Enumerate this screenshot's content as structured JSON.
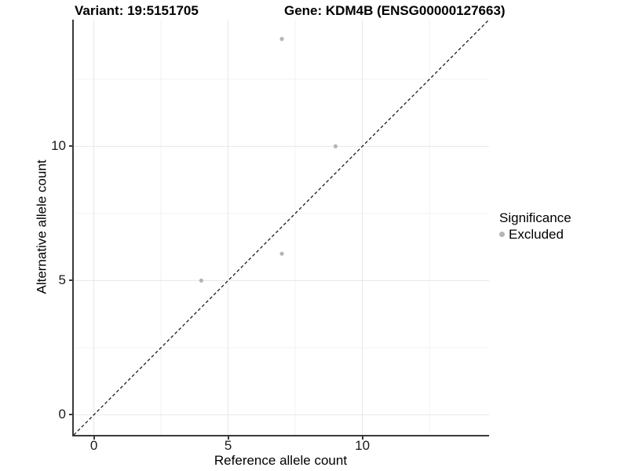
{
  "header": {
    "variant_title": "Variant: 19:5151705",
    "gene_title": "Gene: KDM4B (ENSG00000127663)"
  },
  "chart_data": {
    "type": "scatter",
    "title": "Variant: 19:5151705   Gene: KDM4B (ENSG00000127663)",
    "xlabel": "Reference allele count",
    "ylabel": "Alternative allele count",
    "xlim": [
      -0.75,
      14.72
    ],
    "ylim": [
      -0.75,
      14.72
    ],
    "x_ticks": [
      0,
      5,
      10
    ],
    "y_ticks": [
      0,
      5,
      10
    ],
    "x_minor_ticks": [
      2.5,
      7.5,
      12.5
    ],
    "y_minor_ticks": [
      2.5,
      7.5,
      12.5
    ],
    "grid": "major and minor gridlines on white background",
    "reference_line": "identity line y = x, black dashed",
    "series": [
      {
        "name": "Excluded",
        "points": [
          [
            7,
            14
          ],
          [
            9,
            10
          ],
          [
            7,
            6
          ],
          [
            4,
            5
          ]
        ]
      }
    ],
    "legend": {
      "title": "Significance",
      "position": "right",
      "items": [
        {
          "label": "Excluded"
        }
      ]
    }
  },
  "colors": {
    "point": "#b5b5b5",
    "grid_major": "#e7e7e7",
    "grid_minor": "#f2f2f2",
    "axis_line": "#3a3a3a",
    "reference_line": "#1a1a1a",
    "background": "#ffffff",
    "text": "#000000"
  }
}
